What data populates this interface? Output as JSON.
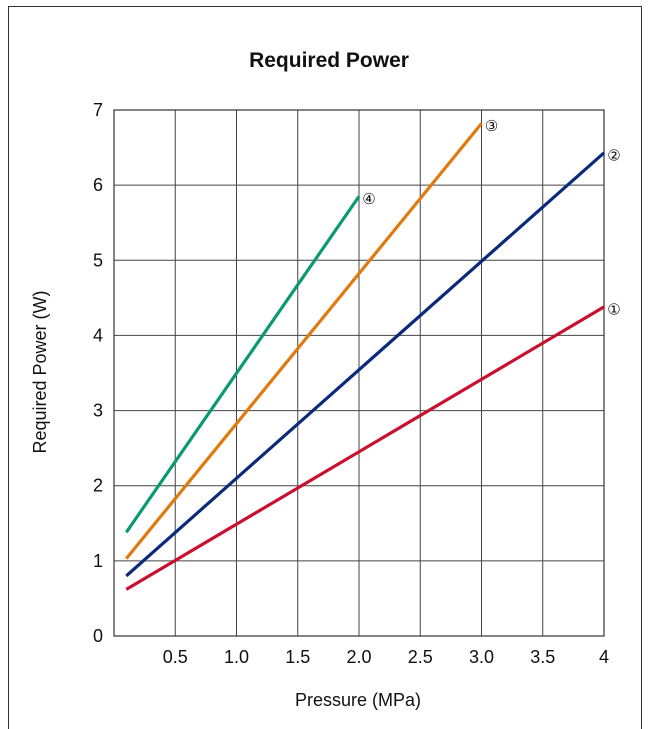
{
  "chart_data": {
    "type": "line",
    "title": "Required Power",
    "xlabel": "Pressure (MPa)",
    "ylabel": "Required Power (W)",
    "xlim": [
      0,
      4
    ],
    "ylim": [
      0,
      7
    ],
    "grid": true,
    "x_ticks": [
      {
        "value": 0.5,
        "label": "0.5"
      },
      {
        "value": 1.0,
        "label": "1.0"
      },
      {
        "value": 1.5,
        "label": "1.5"
      },
      {
        "value": 2.0,
        "label": "2.0"
      },
      {
        "value": 2.5,
        "label": "2.5"
      },
      {
        "value": 3.0,
        "label": "3.0"
      },
      {
        "value": 3.5,
        "label": "3.5"
      },
      {
        "value": 4.0,
        "label": "4"
      }
    ],
    "y_ticks": [
      {
        "value": 0,
        "label": "0"
      },
      {
        "value": 1,
        "label": "1"
      },
      {
        "value": 2,
        "label": "2"
      },
      {
        "value": 3,
        "label": "3"
      },
      {
        "value": 4,
        "label": "4"
      },
      {
        "value": 5,
        "label": "5"
      },
      {
        "value": 6,
        "label": "6"
      },
      {
        "value": 7,
        "label": "7"
      }
    ],
    "series": [
      {
        "name": "①",
        "color": "#c8102e",
        "points": [
          [
            0.1,
            0.62
          ],
          [
            4.0,
            4.38
          ]
        ]
      },
      {
        "name": "②",
        "color": "#0b2a7a",
        "points": [
          [
            0.1,
            0.8
          ],
          [
            4.0,
            6.43
          ]
        ]
      },
      {
        "name": "③",
        "color": "#e07a10",
        "points": [
          [
            0.1,
            1.03
          ],
          [
            3.0,
            6.82
          ]
        ]
      },
      {
        "name": "④",
        "color": "#0a9a70",
        "points": [
          [
            0.1,
            1.38
          ],
          [
            2.0,
            5.85
          ]
        ]
      }
    ]
  }
}
